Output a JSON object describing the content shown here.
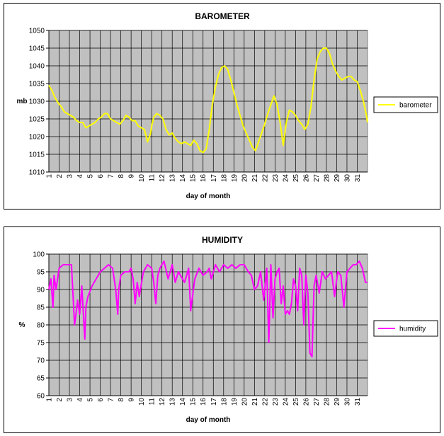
{
  "charts": [
    {
      "id": "barometer",
      "color": "#ffff00",
      "chart_data": {
        "type": "line",
        "title": "BAROMETER",
        "xlabel": "day of month",
        "ylabel": "mb",
        "ylim": [
          1010,
          1050
        ],
        "xlim": [
          1,
          32
        ],
        "y_ticks": [
          "1010",
          "1015",
          "1020",
          "1025",
          "1030",
          "1035",
          "1040",
          "1045",
          "1050"
        ],
        "x_ticks": [
          "1",
          "2",
          "3",
          "4",
          "5",
          "6",
          "7",
          "8",
          "9",
          "10",
          "11",
          "12",
          "13",
          "14",
          "15",
          "16",
          "17",
          "18",
          "19",
          "20",
          "21",
          "22",
          "23",
          "24",
          "25",
          "26",
          "27",
          "28",
          "29",
          "30",
          "31"
        ],
        "grid": true,
        "legend_position": "right",
        "series": [
          {
            "name": "barometer",
            "x": [
              1,
              1.3,
              1.6,
              1.9,
              2.2,
              2.5,
              2.8,
              3.1,
              3.4,
              3.7,
              4.0,
              4.3,
              4.6,
              4.9,
              5.2,
              5.5,
              5.8,
              6.1,
              6.4,
              6.7,
              7.0,
              7.3,
              7.6,
              7.9,
              8.2,
              8.5,
              8.8,
              9.1,
              9.4,
              9.7,
              10.0,
              10.3,
              10.6,
              10.9,
              11.0,
              11.2,
              11.5,
              11.8,
              12.1,
              12.4,
              12.7,
              13.0,
              13.3,
              13.6,
              13.9,
              14.2,
              14.5,
              14.8,
              15.1,
              15.4,
              15.7,
              16.0,
              16.3,
              16.6,
              16.9,
              17.2,
              17.5,
              17.8,
              18.1,
              18.4,
              18.7,
              19.0,
              19.3,
              19.6,
              19.9,
              20.2,
              20.5,
              20.8,
              21.1,
              21.4,
              21.7,
              22.0,
              22.3,
              22.6,
              22.9,
              23.2,
              23.5,
              23.8,
              24.1,
              24.4,
              24.7,
              25.0,
              25.3,
              25.6,
              25.9,
              26.2,
              26.5,
              26.8,
              27.1,
              27.4,
              27.7,
              28.0,
              28.3,
              28.6,
              28.9,
              29.2,
              29.5,
              29.8,
              30.1,
              30.4,
              30.7,
              31.0,
              31.3,
              31.6,
              31.9,
              32.0
            ],
            "values": [
              1034.5,
              1033,
              1031,
              1029.5,
              1028.5,
              1027,
              1026.5,
              1026,
              1025.5,
              1024.5,
              1024,
              1024,
              1022.5,
              1023,
              1023.5,
              1024,
              1025,
              1025.5,
              1026.5,
              1026.5,
              1025,
              1024.5,
              1024,
              1023.5,
              1024.5,
              1026,
              1025.5,
              1024.5,
              1024.5,
              1023,
              1022.5,
              1022,
              1018.5,
              1021,
              1023,
              1025.5,
              1026.5,
              1026,
              1025,
              1022,
              1020.5,
              1021,
              1019.5,
              1018.5,
              1018,
              1018.5,
              1018,
              1017.5,
              1019,
              1018,
              1016,
              1015.5,
              1016.5,
              1022,
              1029,
              1034,
              1037.5,
              1039.5,
              1040,
              1039,
              1036,
              1032.5,
              1029,
              1026,
              1023,
              1021,
              1019,
              1017,
              1016,
              1018.5,
              1021,
              1023.5,
              1026.5,
              1029,
              1031.5,
              1029,
              1024,
              1017.5,
              1024,
              1027.5,
              1027,
              1026,
              1024.5,
              1023.5,
              1022,
              1023.5,
              1028.5,
              1036,
              1042,
              1044,
              1045,
              1045,
              1043.5,
              1040.5,
              1038.5,
              1037,
              1036,
              1036.5,
              1037,
              1037,
              1036,
              1035.5,
              1033,
              1030,
              1026,
              1024
            ]
          }
        ]
      }
    },
    {
      "id": "humidity",
      "color": "#ff00ff",
      "chart_data": {
        "type": "line",
        "title": "HUMIDITY",
        "xlabel": "day of month",
        "ylabel": "%",
        "ylim": [
          60,
          100
        ],
        "xlim": [
          1,
          32
        ],
        "y_ticks": [
          "60",
          "65",
          "70",
          "75",
          "80",
          "85",
          "90",
          "95",
          "100"
        ],
        "x_ticks": [
          "1",
          "2",
          "3",
          "4",
          "5",
          "6",
          "7",
          "8",
          "9",
          "10",
          "11",
          "12",
          "13",
          "14",
          "15",
          "16",
          "17",
          "18",
          "19",
          "20",
          "21",
          "22",
          "23",
          "24",
          "25",
          "26",
          "27",
          "28",
          "29",
          "30",
          "31"
        ],
        "grid": true,
        "legend_position": "right",
        "series": [
          {
            "name": "humidity",
            "x": [
              1,
              1.2,
              1.4,
              1.5,
              1.7,
              2.0,
              2.4,
              2.8,
              3.2,
              3.5,
              3.6,
              3.8,
              4.0,
              4.2,
              4.5,
              4.6,
              4.8,
              5.2,
              5.6,
              6.0,
              6.4,
              6.8,
              7.2,
              7.5,
              7.7,
              7.8,
              8.0,
              8.4,
              8.8,
              9.0,
              9.2,
              9.4,
              9.6,
              9.8,
              10.2,
              10.6,
              11.0,
              11.2,
              11.4,
              11.6,
              11.8,
              12.2,
              12.6,
              13.0,
              13.3,
              13.6,
              13.8,
              14.2,
              14.6,
              14.8,
              15.2,
              15.6,
              16.0,
              16.4,
              16.6,
              16.8,
              17.2,
              17.6,
              18.0,
              18.4,
              18.8,
              19.2,
              19.6,
              20.0,
              20.4,
              20.7,
              21.0,
              21.3,
              21.6,
              21.9,
              22.2,
              22.4,
              22.6,
              22.8,
              23.0,
              23.2,
              23.4,
              23.6,
              23.8,
              24.0,
              24.2,
              24.4,
              24.6,
              24.8,
              25.0,
              25.2,
              25.4,
              25.6,
              25.8,
              26.0,
              26.2,
              26.4,
              26.6,
              26.8,
              27.0,
              27.3,
              27.6,
              27.9,
              28.2,
              28.5,
              28.8,
              29.1,
              29.4,
              29.7,
              30.0,
              30.3,
              30.6,
              30.9,
              31.2,
              31.5,
              31.8,
              32.0
            ],
            "values": [
              90,
              93,
              85,
              94,
              90,
              96,
              97,
              97,
              97,
              80,
              82,
              87,
              83,
              91,
              76,
              85,
              88,
              91,
              93,
              95,
              96,
              97,
              96,
              90,
              83,
              90,
              94,
              95,
              95,
              96,
              93,
              86,
              92,
              88,
              95,
              97,
              96,
              92,
              86,
              94,
              96,
              98,
              93,
              97,
              92,
              95,
              94,
              92,
              96,
              84,
              93,
              96,
              94,
              95,
              96,
              93,
              97,
              95,
              97,
              96,
              97,
              96,
              97,
              97,
              95,
              94,
              90,
              91,
              95,
              87,
              96,
              75,
              97,
              82,
              93,
              95,
              96,
              86,
              91,
              83,
              84,
              83,
              86,
              93,
              91,
              84,
              96,
              94,
              80,
              94,
              89,
              72,
              71,
              91,
              94,
              89,
              95,
              93,
              94,
              95,
              88,
              95,
              94,
              85,
              95,
              96,
              97,
              97,
              98,
              96,
              92,
              92
            ]
          }
        ]
      }
    }
  ]
}
